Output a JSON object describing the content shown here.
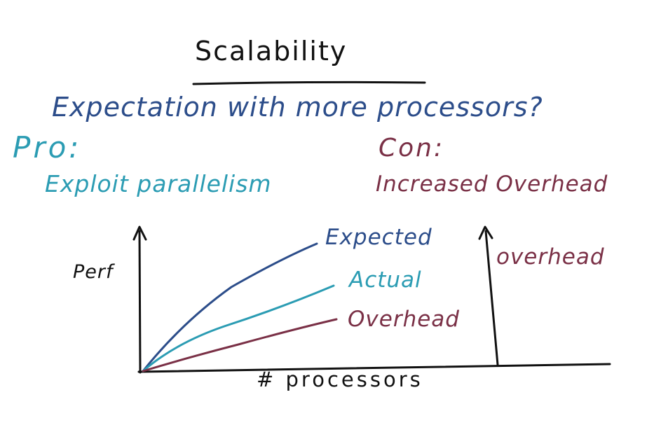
{
  "title": "Scalability",
  "question": "Expectation with more processors?",
  "pro": {
    "label": "Pro:",
    "text": "Exploit parallelism"
  },
  "con": {
    "label": "Con:",
    "text": "Increased Overhead"
  },
  "graph": {
    "y_label": "Perf",
    "x_label": "# processors",
    "curves": [
      {
        "label": "Expected",
        "color": "#2c4d8a"
      },
      {
        "label": "Actual",
        "color": "#2b9cb3"
      },
      {
        "label": "Overhead",
        "color": "#7a3046"
      }
    ],
    "side_axis_label": "overhead"
  },
  "colors": {
    "ink": "#111111",
    "blue": "#2c4d8a",
    "teal": "#2b9cb3",
    "maroon": "#7a3046"
  }
}
